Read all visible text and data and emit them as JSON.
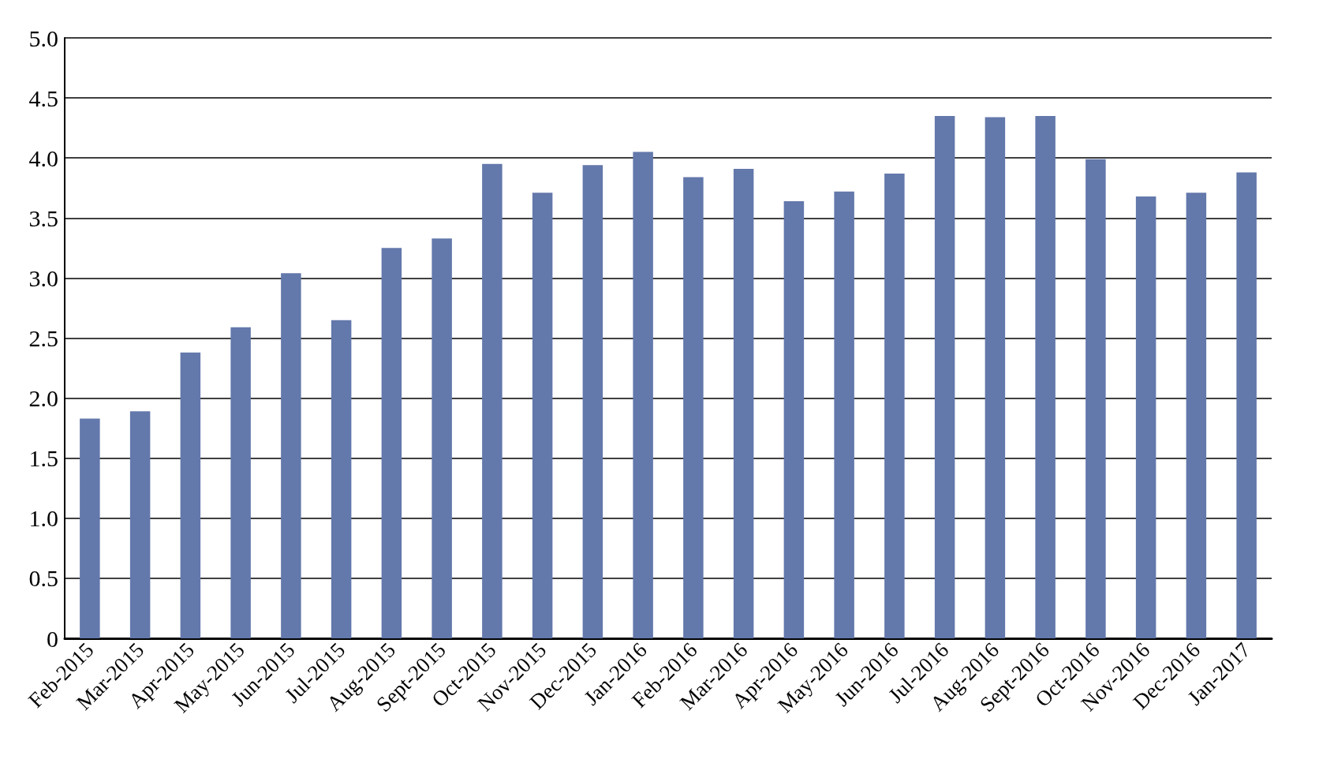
{
  "chart_data": {
    "type": "bar",
    "categories": [
      "Feb-2015",
      "Mar-2015",
      "Apr-2015",
      "May-2015",
      "Jun-2015",
      "Jul-2015",
      "Aug-2015",
      "Sept-2015",
      "Oct-2015",
      "Nov-2015",
      "Dec-2015",
      "Jan-2016",
      "Feb-2016",
      "Mar-2016",
      "Apr-2016",
      "May-2016",
      "Jun-2016",
      "Jul-2016",
      "Aug-2016",
      "Sept-2016",
      "Oct-2016",
      "Nov-2016",
      "Dec-2016",
      "Jan-2017"
    ],
    "values": [
      1.83,
      1.89,
      2.38,
      2.59,
      3.04,
      2.65,
      3.25,
      3.33,
      3.95,
      3.71,
      3.94,
      4.05,
      3.84,
      3.91,
      3.64,
      3.72,
      3.87,
      4.35,
      4.34,
      4.35,
      3.99,
      3.68,
      3.71,
      3.88
    ],
    "color": "#6378ab",
    "ylim": [
      0,
      5
    ],
    "yticks": [
      0,
      0.5,
      {
        "value": 1,
        "label": "1.0"
      },
      1.5,
      {
        "value": 2,
        "label": "2.0"
      },
      2.5,
      {
        "value": 3,
        "label": "3.0"
      },
      3.5,
      {
        "value": 4,
        "label": "4.0"
      },
      4.5,
      {
        "value": 5,
        "label": "5.0"
      }
    ],
    "grid": "y"
  }
}
